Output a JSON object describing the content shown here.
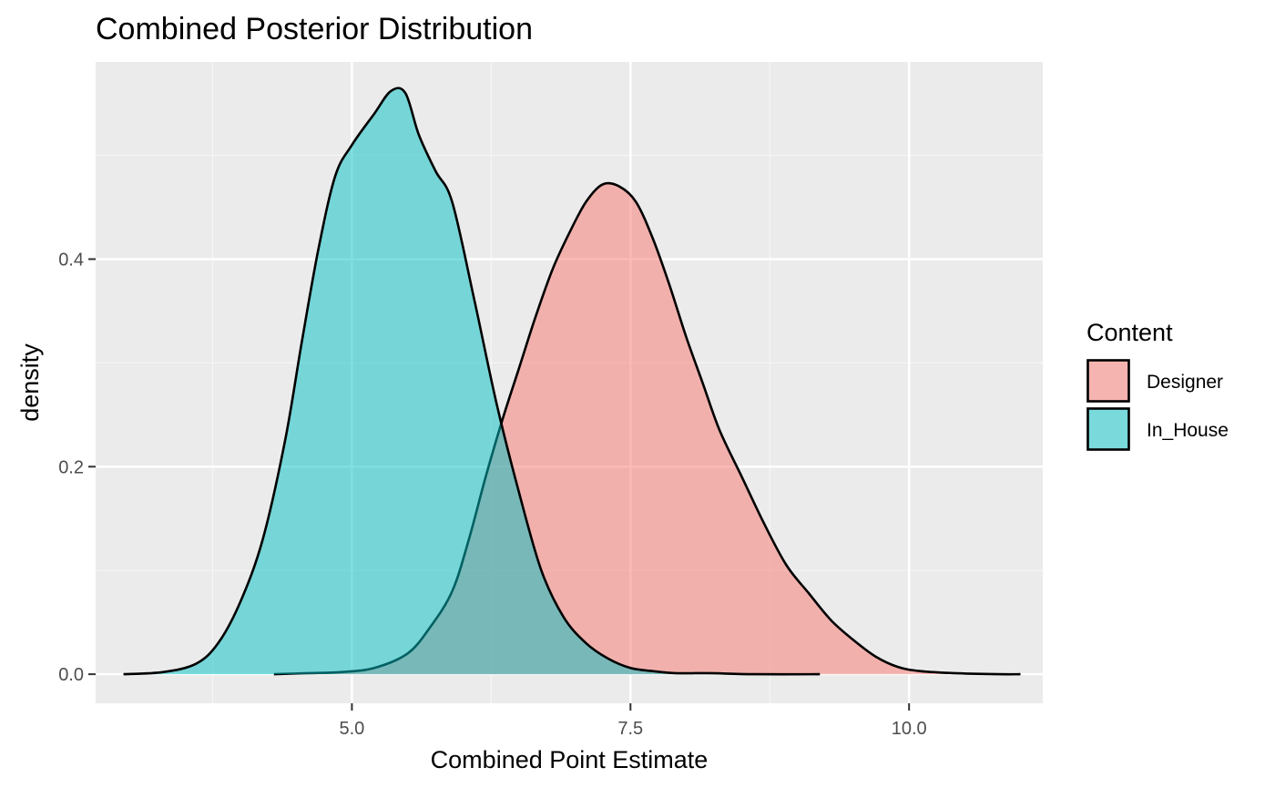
{
  "chart_data": {
    "type": "area",
    "chart_kind": "density",
    "title": "Combined Posterior Distribution",
    "xlabel": "Combined Point Estimate",
    "ylabel": "density",
    "xlim": [
      2.7,
      11.2
    ],
    "ylim": [
      -0.028,
      0.59
    ],
    "x_ticks": [
      5.0,
      7.5,
      10.0
    ],
    "x_tick_labels": [
      "5.0",
      "7.5",
      "10.0"
    ],
    "y_ticks": [
      0.0,
      0.2,
      0.4
    ],
    "y_tick_labels": [
      "0.0",
      "0.2",
      "0.4"
    ],
    "grid": true,
    "legend": {
      "title": "Content",
      "placement": "right"
    },
    "series": [
      {
        "name": "Designer",
        "color": "#F8766D",
        "x": [
          4.3,
          4.6,
          4.9,
          5.2,
          5.5,
          5.7,
          5.9,
          6.05,
          6.2,
          6.35,
          6.5,
          6.65,
          6.8,
          6.95,
          7.1,
          7.25,
          7.4,
          7.55,
          7.7,
          7.85,
          8.0,
          8.15,
          8.3,
          8.5,
          8.7,
          8.9,
          9.1,
          9.3,
          9.5,
          9.7,
          9.9,
          10.1,
          10.4,
          10.8,
          11.0
        ],
        "values": [
          0.0,
          0.001,
          0.002,
          0.006,
          0.02,
          0.045,
          0.08,
          0.13,
          0.19,
          0.245,
          0.295,
          0.345,
          0.39,
          0.425,
          0.455,
          0.472,
          0.47,
          0.455,
          0.42,
          0.375,
          0.325,
          0.28,
          0.235,
          0.19,
          0.145,
          0.105,
          0.078,
          0.052,
          0.033,
          0.017,
          0.007,
          0.003,
          0.001,
          0.0,
          0.0
        ]
      },
      {
        "name": "In_House",
        "color": "#00BFC4",
        "x": [
          2.95,
          3.3,
          3.6,
          3.8,
          4.0,
          4.2,
          4.4,
          4.55,
          4.7,
          4.85,
          5.0,
          5.2,
          5.35,
          5.48,
          5.6,
          5.75,
          5.9,
          6.1,
          6.3,
          6.5,
          6.7,
          6.9,
          7.1,
          7.3,
          7.5,
          7.7,
          7.9,
          8.2,
          8.6,
          9.2
        ],
        "values": [
          0.0,
          0.002,
          0.01,
          0.03,
          0.07,
          0.13,
          0.225,
          0.32,
          0.41,
          0.48,
          0.51,
          0.54,
          0.562,
          0.56,
          0.52,
          0.485,
          0.455,
          0.36,
          0.26,
          0.175,
          0.1,
          0.055,
          0.03,
          0.015,
          0.006,
          0.003,
          0.001,
          0.001,
          0.0,
          0.0
        ]
      }
    ]
  }
}
